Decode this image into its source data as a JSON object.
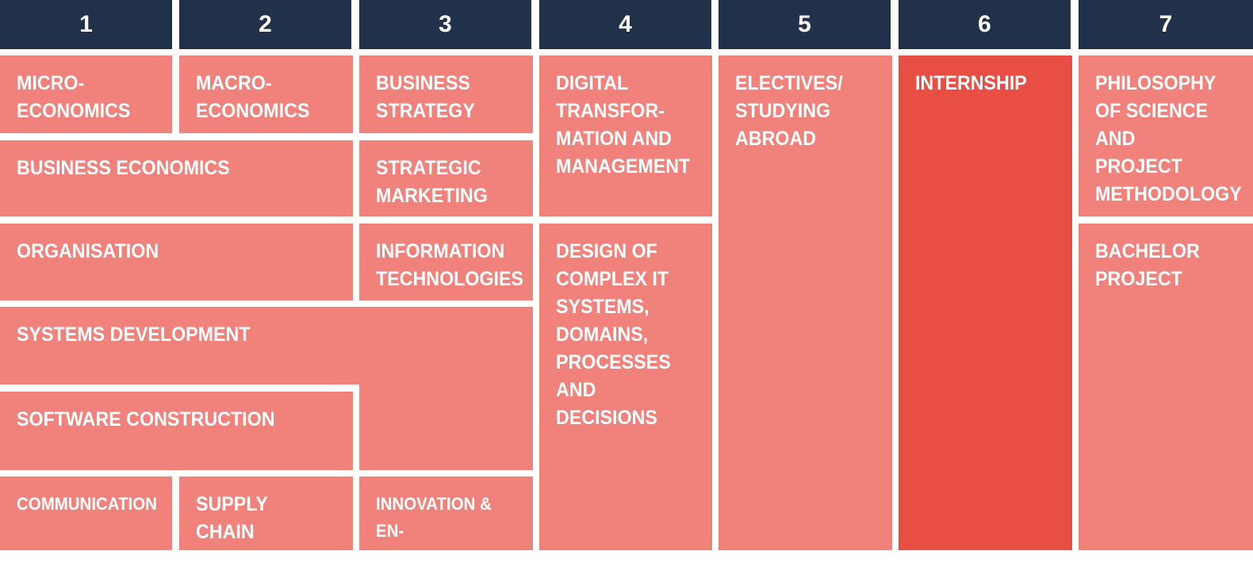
{
  "colors": {
    "header_bg": "#22314a",
    "course_bg": "#f0827b",
    "internship_bg": "#e94e45",
    "text": "#ffffff",
    "gap": "#ffffff"
  },
  "semesters": [
    "1",
    "2",
    "3",
    "4",
    "5",
    "6",
    "7"
  ],
  "courses": {
    "micro_economics": "MICRO-\nECONOMICS",
    "macro_economics": "MACRO-\nECONOMICS",
    "business_strategy": "BUSINESS\nSTRATEGY",
    "digital_transformation": "DIGITAL\nTRANSFOR-\nMATION AND\nMANAGEMENT",
    "electives": "ELECTIVES/\nSTUDYING\nABROAD",
    "internship": "INTERNSHIP",
    "philosophy_of_science": "PHILOSOPHY\nOF SCIENCE\nAND PROJECT\nMETHODOLOGY",
    "business_economics": "BUSINESS ECONOMICS",
    "strategic_marketing": "STRATEGIC\nMARKETING",
    "organisation": "ORGANISATION",
    "information_technologies": "INFORMATION\nTECHNOLOGIES",
    "design_complex_it": "DESIGN OF\nCOMPLEX IT\nSYSTEMS,\nDOMAINS,\nPROCESSES\nAND\nDECISIONS",
    "bachelor_project": "BACHELOR\nPROJECT",
    "systems_development": "SYSTEMS DEVELOPMENT",
    "software_construction": "SOFTWARE CONSTRUCTION",
    "communication": "COMMUNICATION",
    "supply_chain_management": "SUPPLY CHAIN\nMANAGEMENT",
    "innovation_entrepreneurship": "INNOVATION & EN-\nTREPRENEURSHIP"
  }
}
